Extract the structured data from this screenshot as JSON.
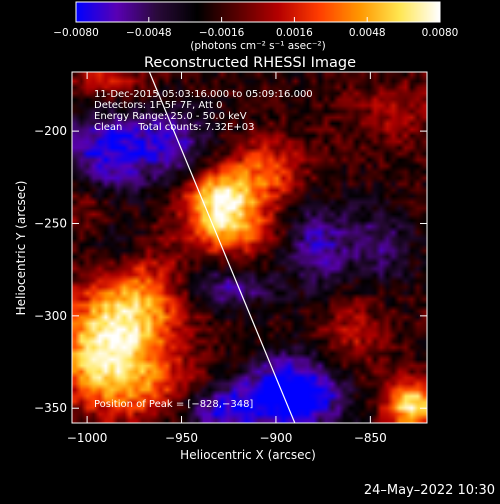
{
  "chart_data": {
    "type": "heatmap",
    "title": "Reconstructed RHESSI Image",
    "xlabel": "Heliocentric X (arcsec)",
    "ylabel": "Heliocentric Y (arcsec)",
    "xlim": [
      -1008,
      -820
    ],
    "ylim": [
      -358,
      -168
    ],
    "x_ticks": [
      -1000,
      -950,
      -900,
      -850
    ],
    "x_tick_labels": [
      "−1000",
      "−950",
      "−900",
      "−850"
    ],
    "y_ticks": [
      -200,
      -250,
      -300,
      -350
    ],
    "y_tick_labels": [
      "−200",
      "−250",
      "−300",
      "−350"
    ],
    "colorbar": {
      "range": [
        -0.008,
        0.008
      ],
      "ticks": [
        -0.008,
        -0.0048,
        -0.0016,
        0.0016,
        0.0048,
        0.008
      ],
      "tick_labels": [
        "−0.0080",
        "−0.0048",
        "−0.0016",
        "0.0016",
        "0.0048",
        "0.0080"
      ],
      "units_label": "(photons cm⁻² s⁻¹ asec⁻²)",
      "colors": [
        "#0000ff",
        "#5a00b4",
        "#2a0a3a",
        "#000000",
        "#5a0000",
        "#b40000",
        "#ff3c00",
        "#ff9600",
        "#ffe650",
        "#ffffff"
      ]
    },
    "annotations": [
      "11-Dec-2015 05:03:16.000 to 05:09:16.000",
      "Detectors: 1F 5F 7F, Att 0",
      "Energy Range: 25.0 - 50.0 keV",
      "Clean     Total counts: 7.32E+03"
    ],
    "peak_label": "Position of Peak = [−828,−348]",
    "peak": [
      -828,
      -348
    ],
    "limb_line": [
      [
        -967,
        -168
      ],
      [
        -890,
        -358
      ]
    ],
    "background_level": -0.0018,
    "sources": [
      {
        "x": -929,
        "y": -236,
        "amp": 0.0085,
        "sx": 13,
        "sy": 10
      },
      {
        "x": -925,
        "y": -254,
        "amp": 0.0058,
        "sx": 16,
        "sy": 9
      },
      {
        "x": -905,
        "y": -222,
        "amp": 0.0045,
        "sx": 15,
        "sy": 12
      },
      {
        "x": -975,
        "y": -298,
        "amp": 0.007,
        "sx": 18,
        "sy": 22
      },
      {
        "x": -995,
        "y": -320,
        "amp": 0.0065,
        "sx": 16,
        "sy": 18
      },
      {
        "x": -968,
        "y": -340,
        "amp": 0.004,
        "sx": 22,
        "sy": 12
      },
      {
        "x": -828,
        "y": -348,
        "amp": 0.0088,
        "sx": 10,
        "sy": 9
      },
      {
        "x": -860,
        "y": -310,
        "amp": 0.0028,
        "sx": 12,
        "sy": 16
      },
      {
        "x": -836,
        "y": -190,
        "amp": 0.0022,
        "sx": 18,
        "sy": 12
      },
      {
        "x": -990,
        "y": -172,
        "amp": 0.0032,
        "sx": 16,
        "sy": 10
      },
      {
        "x": -1000,
        "y": -240,
        "amp": 0.0025,
        "sx": 12,
        "sy": 14
      },
      {
        "x": -990,
        "y": -212,
        "amp": -0.006,
        "sx": 16,
        "sy": 18
      },
      {
        "x": -955,
        "y": -206,
        "amp": -0.0045,
        "sx": 14,
        "sy": 14
      },
      {
        "x": -985,
        "y": -262,
        "amp": -0.003,
        "sx": 12,
        "sy": 10
      },
      {
        "x": -890,
        "y": -342,
        "amp": -0.0085,
        "sx": 18,
        "sy": 14
      },
      {
        "x": -930,
        "y": -350,
        "amp": -0.0055,
        "sx": 16,
        "sy": 10
      },
      {
        "x": -878,
        "y": -262,
        "amp": -0.0045,
        "sx": 12,
        "sy": 18
      },
      {
        "x": -845,
        "y": -262,
        "amp": -0.0035,
        "sx": 12,
        "sy": 16
      },
      {
        "x": -925,
        "y": -285,
        "amp": -0.004,
        "sx": 16,
        "sy": 8
      }
    ]
  },
  "footer_timestamp": "24–May–2022 10:30"
}
